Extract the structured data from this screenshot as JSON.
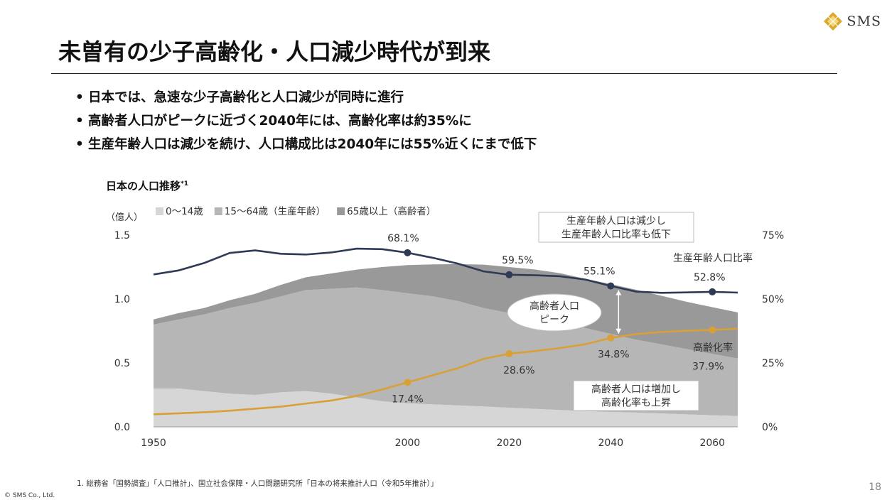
{
  "brand": {
    "name": "SMS",
    "copyright": "© SMS Co., Ltd."
  },
  "slide": {
    "title": "未曽有の少子高齢化・人口減少時代が到来",
    "bullets": [
      "日本では、急速な少子高齢化と人口減少が同時に進行",
      "高齢者人口がピークに近づく2040年には、高齢化率は約35%に",
      "生産年齢人口は減少を続け、人口構成比は2040年には55%近くにまで低下"
    ],
    "bullet_mark": "•",
    "footnote": "1.  総務省「国勢調査」「人口推計」、国立社会保障・人口問題研究所「日本の将来推計人口（令和5年推計）」",
    "page_number": "18"
  },
  "chart_data": {
    "type": "area",
    "title": "日本の人口推移",
    "title_note": "*1",
    "y_unit_label": "（億人）",
    "x": [
      1950,
      1955,
      1960,
      1965,
      1970,
      1975,
      1980,
      1985,
      1990,
      1995,
      2000,
      2005,
      2010,
      2015,
      2020,
      2025,
      2030,
      2035,
      2040,
      2045,
      2050,
      2055,
      2060,
      2065
    ],
    "x_ticks": [
      "1950",
      "2000",
      "2020",
      "2040",
      "2060"
    ],
    "y_ticks": [
      "0.0",
      "0.5",
      "1.0",
      "1.5"
    ],
    "ylim": [
      0,
      1.5
    ],
    "y2_ticks": [
      "0%",
      "25%",
      "50%",
      "75%"
    ],
    "y2lim": [
      0,
      75
    ],
    "series": [
      {
        "name": "0〜14歳",
        "color": "#d6d6d6",
        "values": [
          0.3,
          0.3,
          0.28,
          0.26,
          0.25,
          0.27,
          0.28,
          0.26,
          0.23,
          0.2,
          0.185,
          0.176,
          0.168,
          0.159,
          0.15,
          0.141,
          0.132,
          0.123,
          0.117,
          0.112,
          0.105,
          0.098,
          0.091,
          0.085
        ]
      },
      {
        "name": "15〜64歳（生産年齢）",
        "color": "#b6b6b6",
        "values": [
          0.5,
          0.54,
          0.6,
          0.67,
          0.72,
          0.75,
          0.79,
          0.82,
          0.86,
          0.87,
          0.86,
          0.845,
          0.815,
          0.77,
          0.74,
          0.72,
          0.69,
          0.65,
          0.61,
          0.57,
          0.54,
          0.51,
          0.48,
          0.45
        ]
      },
      {
        "name": "65歳以上（高齢者）",
        "color": "#999999",
        "values": [
          0.04,
          0.05,
          0.05,
          0.06,
          0.07,
          0.09,
          0.1,
          0.12,
          0.14,
          0.18,
          0.22,
          0.25,
          0.29,
          0.34,
          0.36,
          0.37,
          0.38,
          0.385,
          0.39,
          0.39,
          0.38,
          0.37,
          0.365,
          0.36
        ]
      }
    ],
    "lines": [
      {
        "name": "生産年齢人口比率",
        "color": "#2f3a55",
        "axis": "right",
        "values": [
          59.6,
          61.2,
          64.1,
          68.0,
          69.0,
          67.7,
          67.4,
          68.2,
          69.7,
          69.5,
          68.1,
          66.1,
          63.8,
          60.8,
          59.5,
          59.3,
          58.9,
          57.6,
          55.1,
          52.9,
          52.4,
          52.6,
          52.8,
          52.5
        ]
      },
      {
        "name": "高齢化率",
        "color": "#d9a035",
        "axis": "right",
        "values": [
          4.9,
          5.3,
          5.7,
          6.3,
          7.1,
          7.9,
          9.1,
          10.3,
          12.1,
          14.6,
          17.4,
          20.2,
          23.0,
          26.6,
          28.6,
          29.6,
          30.8,
          32.3,
          34.8,
          36.3,
          37.1,
          37.6,
          37.9,
          38.4
        ]
      }
    ],
    "point_labels": [
      {
        "series": "生産年齢人口比率",
        "x": 2000,
        "text": "68.1%"
      },
      {
        "series": "生産年齢人口比率",
        "x": 2020,
        "text": "59.5%"
      },
      {
        "series": "生産年齢人口比率",
        "x": 2040,
        "text": "55.1%"
      },
      {
        "series": "生産年齢人口比率",
        "x": 2060,
        "text": "52.8%"
      },
      {
        "series": "高齢化率",
        "x": 2000,
        "text": "17.4%"
      },
      {
        "series": "高齢化率",
        "x": 2020,
        "text": "28.6%"
      },
      {
        "series": "高齢化率",
        "x": 2040,
        "text": "34.8%"
      },
      {
        "series": "高齢化率",
        "x": 2060,
        "text": "37.9%"
      }
    ],
    "line_names": {
      "working_ratio": "生産年齢人口比率",
      "aging_rate": "高齢化率"
    },
    "annotations": {
      "working_decline": [
        "生産年齢人口は減少し",
        "生産年齢人口比率も低下"
      ],
      "elderly_peak": [
        "高齢者人口",
        "ピーク"
      ],
      "elderly_increase": [
        "高齢者人口は増加し",
        "高齢化率も上昇"
      ]
    },
    "legend_position": "top-left",
    "grid": false
  }
}
